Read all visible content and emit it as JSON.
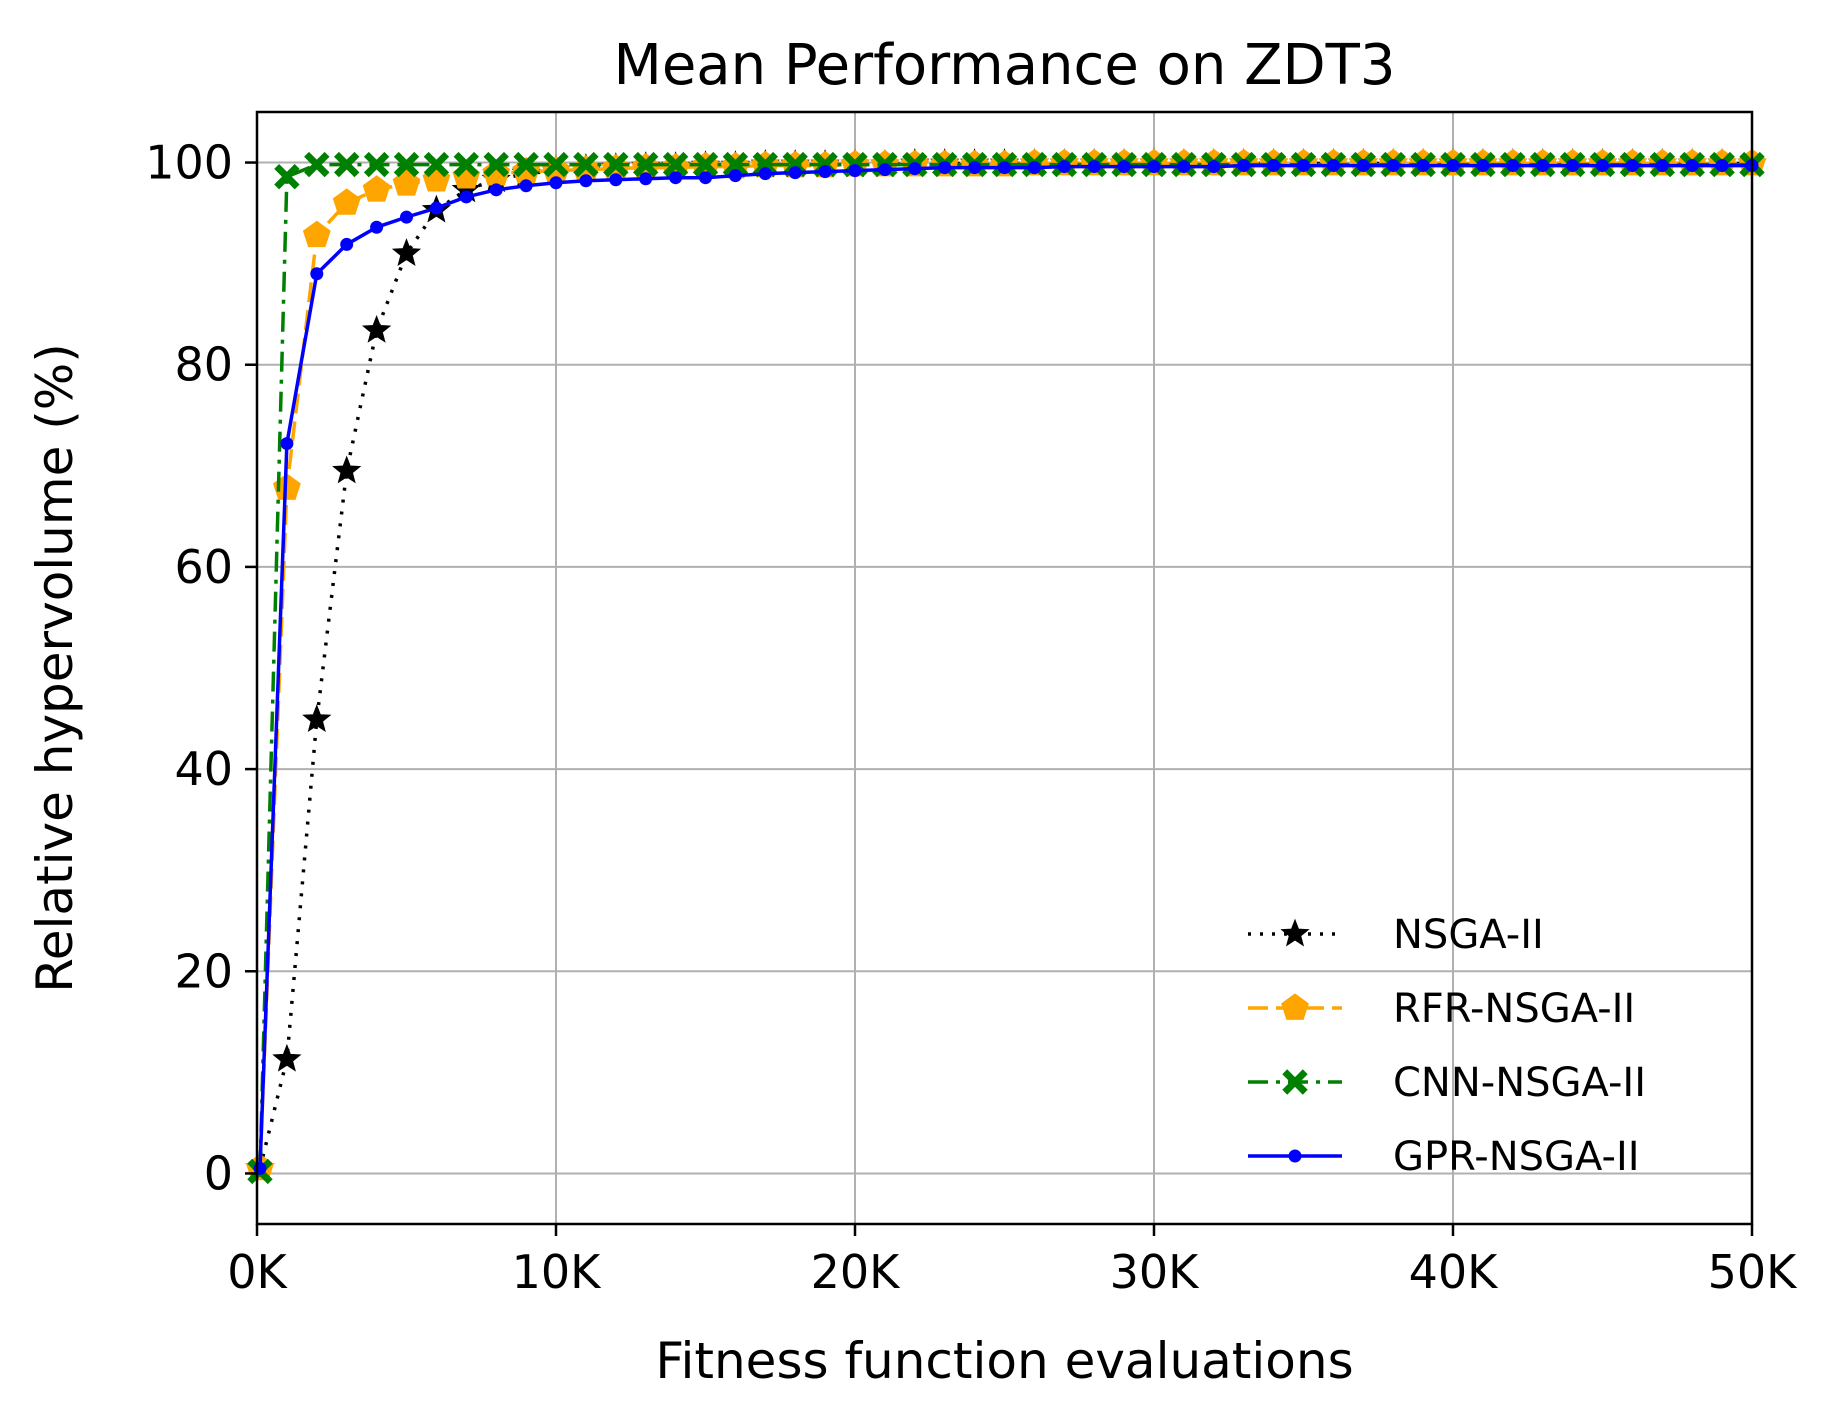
{
  "chart_data": {
    "type": "line",
    "title": "Mean Performance on ZDT3",
    "xlabel": "Fitness function evaluations",
    "ylabel": "Relative hypervolume (%)",
    "xlim": [
      0,
      50000
    ],
    "ylim": [
      -5,
      105
    ],
    "grid": true,
    "legend_position": "bottom-right",
    "x_ticks": [
      0,
      10000,
      20000,
      30000,
      40000,
      50000
    ],
    "x_tick_labels": [
      "0K",
      "10K",
      "20K",
      "30K",
      "40K",
      "50K"
    ],
    "y_ticks": [
      0,
      20,
      40,
      60,
      80,
      100
    ],
    "y_tick_labels": [
      "0",
      "20",
      "40",
      "60",
      "80",
      "100"
    ],
    "x": [
      100,
      1000,
      2000,
      3000,
      4000,
      5000,
      6000,
      7000,
      8000,
      9000,
      10000,
      11000,
      12000,
      13000,
      14000,
      15000,
      16000,
      17000,
      18000,
      19000,
      20000,
      21000,
      22000,
      23000,
      24000,
      25000,
      26000,
      27000,
      28000,
      29000,
      30000,
      31000,
      32000,
      33000,
      34000,
      35000,
      36000,
      37000,
      38000,
      39000,
      40000,
      41000,
      42000,
      43000,
      44000,
      45000,
      46000,
      47000,
      48000,
      49000,
      50000
    ],
    "series": [
      {
        "name": "NSGA-II",
        "color": "#000000",
        "dash": "dotted",
        "marker": "star",
        "values": [
          0.5,
          11.3,
          44.9,
          69.5,
          83.4,
          91.0,
          95.3,
          97.3,
          98.3,
          98.9,
          99.2,
          99.4,
          99.5,
          99.6,
          99.6,
          99.7,
          99.7,
          99.8,
          99.8,
          99.8,
          99.8,
          99.8,
          99.9,
          99.9,
          99.9,
          99.9,
          99.9,
          99.9,
          99.9,
          99.9,
          99.9,
          99.9,
          99.9,
          99.9,
          99.9,
          99.9,
          99.9,
          99.9,
          99.9,
          99.9,
          99.9,
          99.9,
          99.9,
          99.9,
          99.9,
          99.9,
          99.9,
          99.9,
          99.9,
          99.9,
          99.9
        ]
      },
      {
        "name": "RFR-NSGA-II",
        "color": "#ffa500",
        "dash": "dashed",
        "marker": "pentagon",
        "values": [
          0.5,
          67.8,
          92.8,
          96.0,
          97.3,
          97.9,
          98.3,
          98.6,
          98.9,
          99.1,
          99.2,
          99.3,
          99.4,
          99.5,
          99.5,
          99.6,
          99.6,
          99.7,
          99.7,
          99.7,
          99.8,
          99.8,
          99.8,
          99.8,
          99.8,
          99.8,
          99.9,
          99.9,
          99.9,
          99.9,
          99.9,
          99.9,
          99.9,
          99.9,
          99.9,
          99.9,
          99.9,
          99.9,
          99.9,
          99.9,
          99.9,
          99.9,
          99.9,
          99.9,
          99.9,
          99.9,
          99.9,
          99.9,
          99.9,
          99.9,
          99.9
        ]
      },
      {
        "name": "CNN-NSGA-II",
        "color": "#008000",
        "dash": "dashdot",
        "marker": "x-filled",
        "values": [
          0.2,
          98.6,
          99.8,
          99.8,
          99.8,
          99.8,
          99.8,
          99.8,
          99.8,
          99.8,
          99.8,
          99.8,
          99.8,
          99.8,
          99.8,
          99.8,
          99.8,
          99.8,
          99.8,
          99.8,
          99.8,
          99.8,
          99.8,
          99.8,
          99.8,
          99.8,
          99.8,
          99.8,
          99.8,
          99.8,
          99.8,
          99.8,
          99.8,
          99.8,
          99.8,
          99.8,
          99.8,
          99.8,
          99.8,
          99.8,
          99.8,
          99.8,
          99.8,
          99.8,
          99.8,
          99.8,
          99.8,
          99.8,
          99.8,
          99.8,
          99.8
        ]
      },
      {
        "name": "GPR-NSGA-II",
        "color": "#0000ff",
        "dash": "solid",
        "marker": "dot",
        "values": [
          0.5,
          72.2,
          89.0,
          91.9,
          93.6,
          94.6,
          95.5,
          96.6,
          97.3,
          97.7,
          98.0,
          98.2,
          98.3,
          98.4,
          98.5,
          98.5,
          98.7,
          98.9,
          99.0,
          99.1,
          99.2,
          99.3,
          99.4,
          99.5,
          99.5,
          99.5,
          99.5,
          99.6,
          99.6,
          99.6,
          99.6,
          99.6,
          99.6,
          99.7,
          99.7,
          99.7,
          99.7,
          99.7,
          99.7,
          99.7,
          99.7,
          99.7,
          99.7,
          99.7,
          99.7,
          99.7,
          99.7,
          99.7,
          99.7,
          99.7,
          99.7
        ]
      }
    ]
  }
}
